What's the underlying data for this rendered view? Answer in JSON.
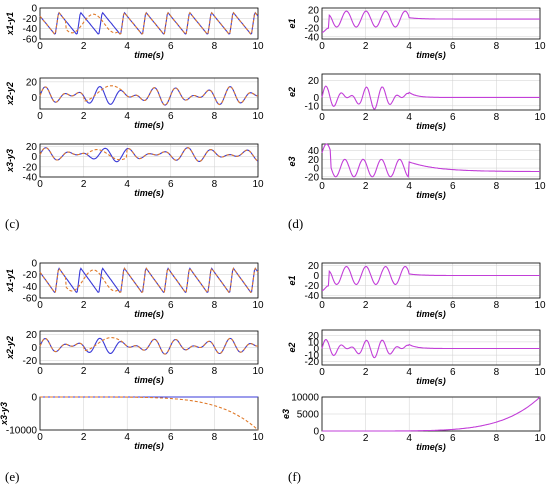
{
  "panel_labels": {
    "c": "(c)",
    "d": "(d)",
    "e": "(e)",
    "f": "(f)"
  },
  "colors": {
    "blue": "#3a3ad8",
    "orange": "#e07a2a",
    "purple": "#c23fd8",
    "axis": "#000000",
    "grid": "#cfcfcf"
  },
  "chart_data": [
    {
      "id": "c1",
      "type": "line",
      "xlabel": "time(s)",
      "ylabel": "x1-y1",
      "xlim": [
        0,
        10
      ],
      "ylim": [
        -60,
        0
      ],
      "xticks": [
        0,
        2,
        4,
        6,
        8,
        10
      ],
      "yticks": [
        0,
        -20,
        -40,
        -60
      ],
      "grid": true,
      "series": [
        {
          "color_key": "blue",
          "shape": "sync",
          "amp": 1
        },
        {
          "color_key": "orange",
          "style": "dashed",
          "shape": "sync-dev",
          "amp": 1
        }
      ]
    },
    {
      "id": "c2",
      "type": "line",
      "xlabel": "time(s)",
      "ylabel": "x2-y2",
      "xlim": [
        0,
        10
      ],
      "ylim": [
        -15,
        25
      ],
      "xticks": [
        0,
        2,
        4,
        6,
        8,
        10
      ],
      "yticks": [
        20,
        0
      ],
      "grid": true,
      "series": [
        {
          "color_key": "blue",
          "shape": "sync2",
          "amp": 1
        },
        {
          "color_key": "orange",
          "style": "dashed",
          "shape": "sync2-dev",
          "amp": 1
        }
      ]
    },
    {
      "id": "c3",
      "type": "line",
      "xlabel": "time(s)",
      "ylabel": "x3-y3",
      "xlim": [
        0,
        10
      ],
      "ylim": [
        -40,
        25
      ],
      "xticks": [
        0,
        2,
        4,
        6,
        8,
        10
      ],
      "yticks": [
        20,
        0,
        -20,
        -40
      ],
      "grid": true,
      "series": [
        {
          "color_key": "blue",
          "shape": "sync3",
          "amp": 1
        },
        {
          "color_key": "orange",
          "style": "dashed",
          "shape": "sync3-dev",
          "amp": 1
        }
      ]
    },
    {
      "id": "d1",
      "type": "line",
      "xlabel": "time(s)",
      "ylabel": "e1",
      "xlim": [
        0,
        10
      ],
      "ylim": [
        -45,
        25
      ],
      "xticks": [
        0,
        2,
        4,
        6,
        8,
        10
      ],
      "yticks": [
        20,
        0,
        -20,
        -40
      ],
      "grid": true,
      "series": [
        {
          "color_key": "purple",
          "shape": "err1",
          "amp": 1
        }
      ]
    },
    {
      "id": "d2",
      "type": "line",
      "xlabel": "time(s)",
      "ylabel": "e2",
      "xlim": [
        0,
        10
      ],
      "ylim": [
        -15,
        28
      ],
      "xticks": [
        0,
        2,
        4,
        6,
        8,
        10
      ],
      "yticks": [
        20,
        0,
        -10
      ],
      "grid": true,
      "series": [
        {
          "color_key": "purple",
          "shape": "err2",
          "amp": 1
        }
      ]
    },
    {
      "id": "d3",
      "type": "line",
      "xlabel": "time(s)",
      "ylabel": "e3",
      "xlim": [
        0,
        10
      ],
      "ylim": [
        -25,
        55
      ],
      "xticks": [
        0,
        2,
        4,
        6,
        8,
        10
      ],
      "yticks": [
        40,
        20,
        0,
        -20
      ],
      "grid": true,
      "series": [
        {
          "color_key": "purple",
          "shape": "err3",
          "amp": 1
        }
      ]
    },
    {
      "id": "e1",
      "type": "line",
      "xlabel": "time(s)",
      "ylabel": "x1-y1",
      "xlim": [
        0,
        10
      ],
      "ylim": [
        -60,
        0
      ],
      "xticks": [
        0,
        2,
        4,
        6,
        8,
        10
      ],
      "yticks": [
        0,
        -20,
        -40,
        -60
      ],
      "grid": true,
      "series": [
        {
          "color_key": "blue",
          "shape": "sync",
          "amp": 1
        },
        {
          "color_key": "orange",
          "style": "dashed",
          "shape": "sync-dev",
          "amp": 1
        }
      ]
    },
    {
      "id": "e2",
      "type": "line",
      "xlabel": "time(s)",
      "ylabel": "x2-y2",
      "xlim": [
        0,
        10
      ],
      "ylim": [
        -25,
        25
      ],
      "xticks": [
        0,
        2,
        4,
        6,
        8,
        10
      ],
      "yticks": [
        20,
        0,
        -20
      ],
      "grid": true,
      "series": [
        {
          "color_key": "blue",
          "shape": "sync2",
          "amp": 1
        },
        {
          "color_key": "orange",
          "style": "dashed",
          "shape": "sync2-dev",
          "amp": 1
        }
      ]
    },
    {
      "id": "e3",
      "type": "line",
      "xlabel": "time(s)",
      "ylabel": "x3-y3",
      "xlim": [
        0,
        10
      ],
      "ylim": [
        -10000,
        0
      ],
      "xticks": [
        0,
        2,
        4,
        6,
        8,
        10
      ],
      "yticks": [
        0,
        -10000
      ],
      "grid": true,
      "series": [
        {
          "color_key": "blue",
          "shape": "zero",
          "amp": 1
        },
        {
          "color_key": "orange",
          "style": "dashed",
          "shape": "expneg",
          "amp": 10000
        }
      ]
    },
    {
      "id": "f1",
      "type": "line",
      "xlabel": "time(s)",
      "ylabel": "e1",
      "xlim": [
        0,
        10
      ],
      "ylim": [
        -45,
        25
      ],
      "xticks": [
        0,
        2,
        4,
        6,
        8,
        10
      ],
      "yticks": [
        20,
        0,
        -20,
        -40
      ],
      "grid": true,
      "series": [
        {
          "color_key": "purple",
          "shape": "err1",
          "amp": 1
        }
      ]
    },
    {
      "id": "f2",
      "type": "line",
      "xlabel": "time(s)",
      "ylabel": "e2",
      "xlim": [
        0,
        10
      ],
      "ylim": [
        -25,
        28
      ],
      "xticks": [
        0,
        2,
        4,
        6,
        8,
        10
      ],
      "yticks": [
        20,
        10,
        0,
        -10,
        -20
      ],
      "grid": true,
      "series": [
        {
          "color_key": "purple",
          "shape": "err2",
          "amp": 1
        }
      ]
    },
    {
      "id": "f3",
      "type": "line",
      "xlabel": "time(s)",
      "ylabel": "e3",
      "xlim": [
        0,
        10
      ],
      "ylim": [
        0,
        10000
      ],
      "xticks": [
        0,
        2,
        4,
        6,
        8,
        10
      ],
      "yticks": [
        10000,
        5000,
        0
      ],
      "grid": true,
      "series": [
        {
          "color_key": "purple",
          "shape": "exppos",
          "amp": 10000
        }
      ]
    }
  ]
}
